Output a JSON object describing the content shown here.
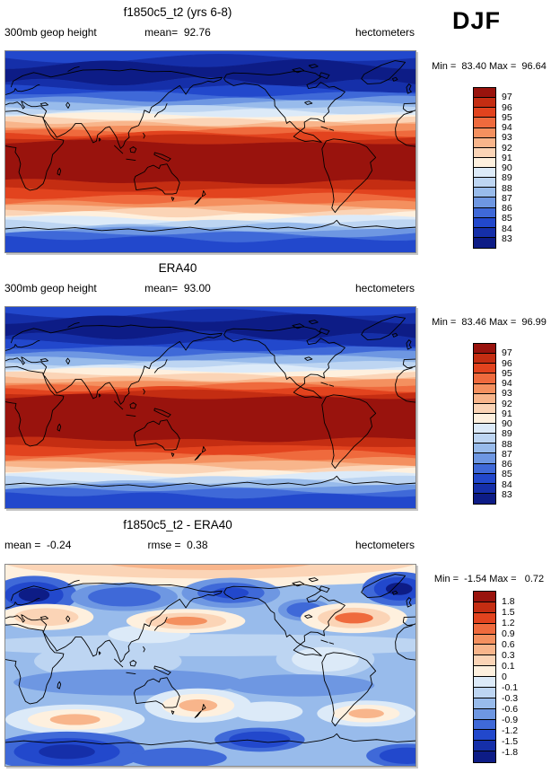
{
  "season_label": "DJF",
  "chart_data": {
    "type": "heatmap",
    "subtype": "filled-contour latitude-longitude world maps: model, reanalysis, difference",
    "field": "300mb geop height",
    "units": "hectometers",
    "season": "DJF",
    "palette": [
      "#99130D",
      "#C42D12",
      "#E2431E",
      "#EF6A3D",
      "#F4905F",
      "#F8B58B",
      "#FBD4B6",
      "#FEF0DE",
      "#DCEAF8",
      "#BDD5F2",
      "#98BBEB",
      "#6E97E2",
      "#3F69D8",
      "#2248CC",
      "#152FA9",
      "#0D1C86"
    ],
    "panels": [
      {
        "id": "model",
        "title": "f1850c5_t2 (yrs 6-8)",
        "left_label": "300mb geop height",
        "center_label": "mean=  92.76",
        "units_label": "hectometers",
        "minmax_label": "Min =  83.40 Max =  96.64",
        "min": 83.4,
        "max": 96.64,
        "mean": 92.76,
        "colorbar_labels": [
          "97",
          "96",
          "95",
          "94",
          "93",
          "92",
          "91",
          "90",
          "89",
          "88",
          "87",
          "86",
          "85",
          "84",
          "83"
        ],
        "map_kind": "zonal",
        "band_profile": [
          {
            "f": 0.035,
            "c": 13
          },
          {
            "f": 0.065,
            "c": 14
          },
          {
            "f": 0.155,
            "c": 15
          },
          {
            "f": 0.185,
            "c": 14
          },
          {
            "f": 0.212,
            "c": 13
          },
          {
            "f": 0.238,
            "c": 12
          },
          {
            "f": 0.26,
            "c": 11
          },
          {
            "f": 0.281,
            "c": 10
          },
          {
            "f": 0.301,
            "c": 9
          },
          {
            "f": 0.32,
            "c": 8
          },
          {
            "f": 0.339,
            "c": 7
          },
          {
            "f": 0.357,
            "c": 6
          },
          {
            "f": 0.375,
            "c": 5
          },
          {
            "f": 0.393,
            "c": 4
          },
          {
            "f": 0.411,
            "c": 3
          },
          {
            "f": 0.429,
            "c": 2
          },
          {
            "f": 0.455,
            "c": 1
          },
          {
            "f": 0.65,
            "c": 0
          },
          {
            "f": 0.688,
            "c": 1
          },
          {
            "f": 0.722,
            "c": 2
          },
          {
            "f": 0.75,
            "c": 3
          },
          {
            "f": 0.772,
            "c": 4
          },
          {
            "f": 0.793,
            "c": 5
          },
          {
            "f": 0.813,
            "c": 6
          },
          {
            "f": 0.832,
            "c": 7
          },
          {
            "f": 0.851,
            "c": 8
          },
          {
            "f": 0.87,
            "c": 9
          },
          {
            "f": 0.889,
            "c": 10
          },
          {
            "f": 0.909,
            "c": 11
          },
          {
            "f": 0.934,
            "c": 12
          },
          {
            "f": 1.0,
            "c": 13
          }
        ]
      },
      {
        "id": "era40",
        "title": "ERA40",
        "left_label": "300mb geop height",
        "center_label": "mean=  93.00",
        "units_label": "hectometers",
        "minmax_label": "Min =  83.46 Max =  96.99",
        "min": 83.46,
        "max": 96.99,
        "mean": 93.0,
        "colorbar_labels": [
          "97",
          "96",
          "95",
          "94",
          "93",
          "92",
          "91",
          "90",
          "89",
          "88",
          "87",
          "86",
          "85",
          "84",
          "83"
        ],
        "map_kind": "zonal",
        "band_profile": [
          {
            "f": 0.03,
            "c": 13
          },
          {
            "f": 0.06,
            "c": 14
          },
          {
            "f": 0.145,
            "c": 15
          },
          {
            "f": 0.178,
            "c": 14
          },
          {
            "f": 0.206,
            "c": 13
          },
          {
            "f": 0.233,
            "c": 12
          },
          {
            "f": 0.256,
            "c": 11
          },
          {
            "f": 0.278,
            "c": 10
          },
          {
            "f": 0.298,
            "c": 9
          },
          {
            "f": 0.317,
            "c": 8
          },
          {
            "f": 0.336,
            "c": 7
          },
          {
            "f": 0.354,
            "c": 6
          },
          {
            "f": 0.372,
            "c": 5
          },
          {
            "f": 0.39,
            "c": 4
          },
          {
            "f": 0.408,
            "c": 3
          },
          {
            "f": 0.426,
            "c": 2
          },
          {
            "f": 0.448,
            "c": 1
          },
          {
            "f": 0.66,
            "c": 0
          },
          {
            "f": 0.695,
            "c": 1
          },
          {
            "f": 0.728,
            "c": 2
          },
          {
            "f": 0.754,
            "c": 3
          },
          {
            "f": 0.775,
            "c": 4
          },
          {
            "f": 0.796,
            "c": 5
          },
          {
            "f": 0.816,
            "c": 6
          },
          {
            "f": 0.834,
            "c": 7
          },
          {
            "f": 0.853,
            "c": 8
          },
          {
            "f": 0.872,
            "c": 9
          },
          {
            "f": 0.891,
            "c": 10
          },
          {
            "f": 0.911,
            "c": 11
          },
          {
            "f": 0.936,
            "c": 12
          },
          {
            "f": 1.0,
            "c": 13
          }
        ]
      },
      {
        "id": "difference",
        "title": "f1850c5_t2 - ERA40",
        "left_label": "mean =  -0.24",
        "center_label": "rmse =  0.38",
        "units_label": "hectometers",
        "minmax_label": "Min =  -1.54 Max =   0.72",
        "min": -1.54,
        "max": 0.72,
        "mean": -0.24,
        "rmse": 0.38,
        "colorbar_labels": [
          "1.8",
          "1.5",
          "1.2",
          "0.9",
          "0.6",
          "0.3",
          "0.1",
          "0",
          "-0.1",
          "-0.3",
          "-0.6",
          "-0.9",
          "-1.2",
          "-1.5",
          "-1.8"
        ],
        "map_kind": "anomaly",
        "background_color_index": 10,
        "patches": [
          {
            "cx": 0.5,
            "cy": 0.4,
            "rx": 0.6,
            "ry": 0.055,
            "layers": [
              9
            ]
          },
          {
            "cx": 0.25,
            "cy": 0.48,
            "rx": 0.18,
            "ry": 0.09,
            "layers": [
              9
            ]
          },
          {
            "cx": 0.78,
            "cy": 0.47,
            "rx": 0.12,
            "ry": 0.09,
            "layers": [
              9,
              8
            ]
          },
          {
            "cx": 0.35,
            "cy": 0.345,
            "rx": 0.1,
            "ry": 0.045,
            "layers": [
              8
            ]
          },
          {
            "cx": 0.3,
            "cy": 0.585,
            "rx": 0.28,
            "ry": 0.065,
            "layers": [
              11
            ]
          },
          {
            "cx": 0.72,
            "cy": 0.6,
            "rx": 0.18,
            "ry": 0.055,
            "layers": [
              11
            ]
          },
          {
            "cx": 0.5,
            "cy": -0.02,
            "rx": 0.75,
            "ry": 0.13,
            "layers": [
              7,
              6,
              5
            ]
          },
          {
            "cx": 0.07,
            "cy": 0.15,
            "rx": 0.105,
            "ry": 0.095,
            "layers": [
              12,
              13,
              15
            ]
          },
          {
            "cx": 0.29,
            "cy": 0.16,
            "rx": 0.13,
            "ry": 0.07,
            "layers": [
              11,
              12
            ]
          },
          {
            "cx": 0.55,
            "cy": 0.14,
            "rx": 0.12,
            "ry": 0.075,
            "layers": [
              11,
              12,
              13
            ]
          },
          {
            "cx": 0.96,
            "cy": 0.12,
            "rx": 0.09,
            "ry": 0.085,
            "layers": [
              12,
              13,
              15
            ]
          },
          {
            "cx": 0.73,
            "cy": 0.225,
            "rx": 0.065,
            "ry": 0.055,
            "layers": [
              11,
              12
            ]
          },
          {
            "cx": 0.1,
            "cy": 0.26,
            "rx": 0.115,
            "ry": 0.065,
            "layers": [
              7,
              6
            ]
          },
          {
            "cx": 0.44,
            "cy": 0.28,
            "rx": 0.145,
            "ry": 0.06,
            "layers": [
              7,
              6,
              4
            ]
          },
          {
            "cx": 0.85,
            "cy": 0.265,
            "rx": 0.13,
            "ry": 0.075,
            "layers": [
              7,
              6,
              3
            ]
          },
          {
            "cx": 0.17,
            "cy": 0.77,
            "rx": 0.17,
            "ry": 0.075,
            "layers": [
              8,
              7,
              5
            ]
          },
          {
            "cx": 0.47,
            "cy": 0.7,
            "rx": 0.13,
            "ry": 0.085,
            "layers": [
              8,
              7,
              5
            ]
          },
          {
            "cx": 0.88,
            "cy": 0.74,
            "rx": 0.12,
            "ry": 0.065,
            "layers": [
              8,
              7,
              5
            ]
          },
          {
            "cx": 0.64,
            "cy": 0.73,
            "rx": 0.085,
            "ry": 0.05,
            "layers": [
              8
            ]
          },
          {
            "cx": 0.15,
            "cy": 0.93,
            "rx": 0.19,
            "ry": 0.1,
            "layers": [
              12,
              13,
              14
            ]
          },
          {
            "cx": 0.62,
            "cy": 0.87,
            "rx": 0.11,
            "ry": 0.06,
            "layers": [
              12,
              13
            ]
          },
          {
            "cx": 0.98,
            "cy": 0.95,
            "rx": 0.1,
            "ry": 0.06,
            "layers": [
              12,
              13
            ]
          },
          {
            "cx": 0.42,
            "cy": 0.96,
            "rx": 0.12,
            "ry": 0.05,
            "layers": [
              12
            ]
          }
        ]
      }
    ]
  }
}
